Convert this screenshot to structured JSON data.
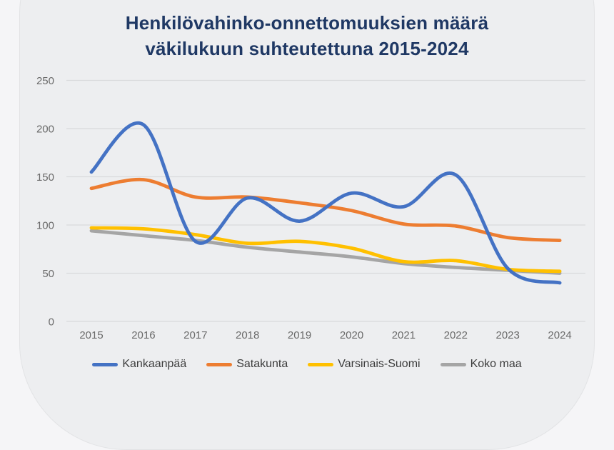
{
  "chart_data": {
    "type": "line",
    "title": "Henkilövahinko-onnettomuuksien määrä väkilukuun suhteutettuna 2015-2024",
    "title_line1": "Henkilövahinko-onnettomuuksien määrä",
    "title_line2": "väkilukuun suhteutettuna 2015-2024",
    "categories": [
      "2015",
      "2016",
      "2017",
      "2018",
      "2019",
      "2020",
      "2021",
      "2022",
      "2023",
      "2024"
    ],
    "series": [
      {
        "name": "Kankaanpää",
        "color": "#4472C4",
        "values": [
          155,
          204,
          83,
          128,
          104,
          133,
          119,
          152,
          55,
          40
        ]
      },
      {
        "name": "Satakunta",
        "color": "#ED7D31",
        "values": [
          138,
          147,
          129,
          129,
          123,
          115,
          101,
          99,
          87,
          84
        ]
      },
      {
        "name": "Varsinais-Suomi",
        "color": "#FFC000",
        "values": [
          97,
          96,
          90,
          81,
          83,
          76,
          62,
          63,
          54,
          52
        ]
      },
      {
        "name": "Koko maa",
        "color": "#A5A5A5",
        "values": [
          94,
          89,
          84,
          77,
          72,
          67,
          60,
          56,
          53,
          50
        ]
      }
    ],
    "xlabel": "",
    "ylabel": "",
    "ylim": [
      0,
      250
    ],
    "yticks": [
      0,
      50,
      100,
      150,
      200,
      250
    ],
    "grid": true,
    "smooth": true,
    "legend_position": "bottom"
  },
  "style_colors": {
    "title": "#1F3864",
    "axis_labels": "#6A6A6A",
    "gridline": "#D9D9DB",
    "card_background": "#EDEEF0",
    "page_background": "#F5F5F7"
  }
}
